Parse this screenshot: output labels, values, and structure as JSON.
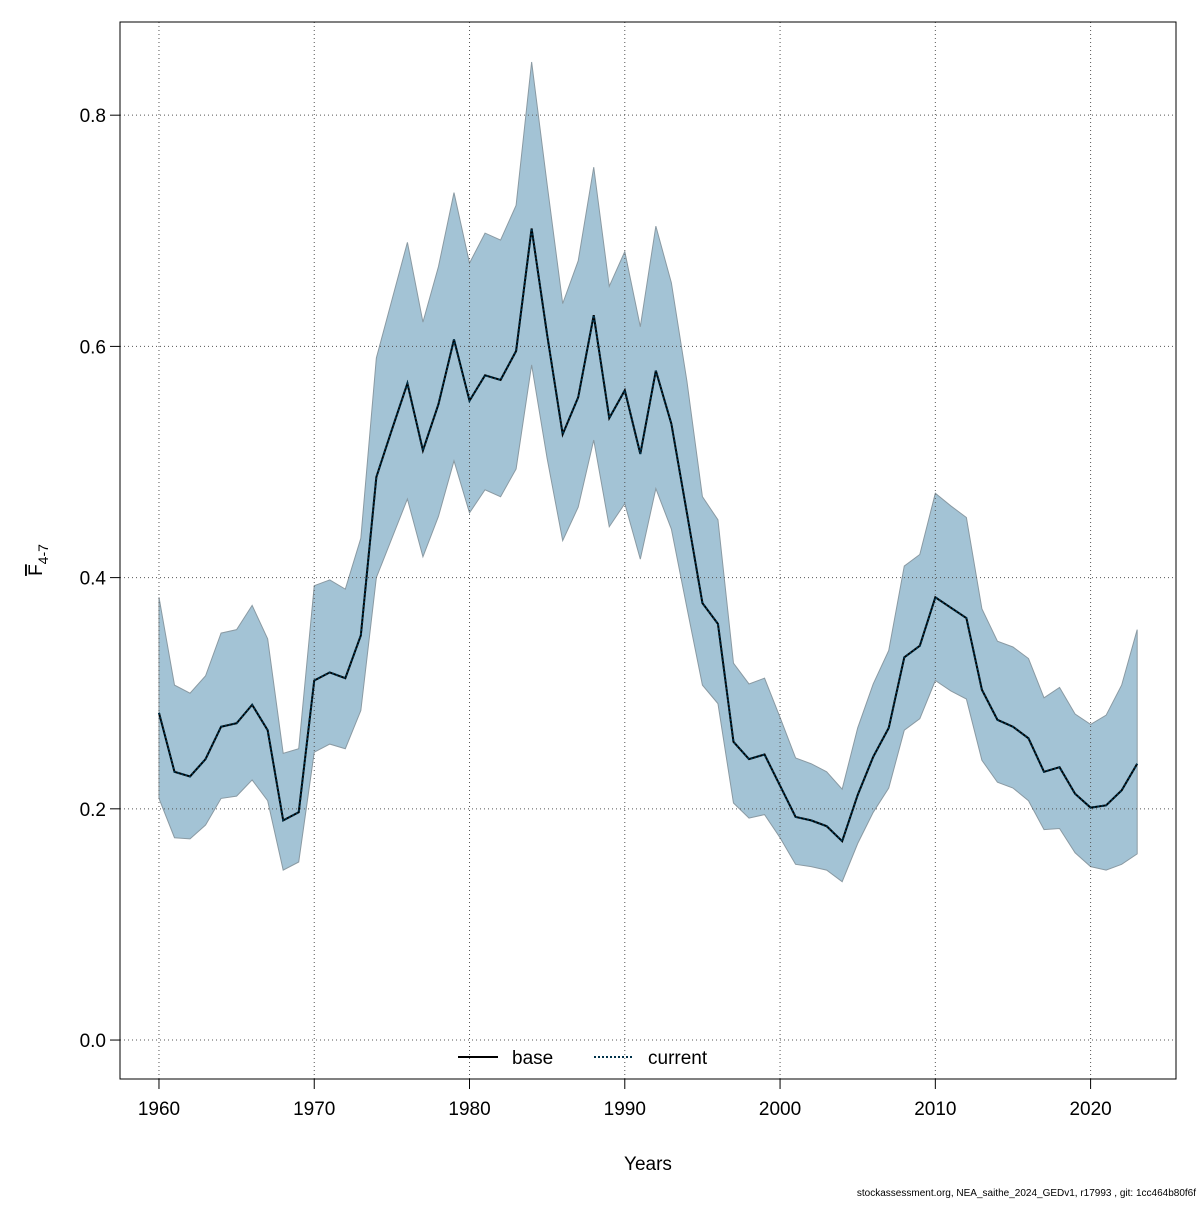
{
  "chart_data": {
    "type": "band-line",
    "xlabel": "Years",
    "ylabel": {
      "main": "F",
      "sub": "4-7"
    },
    "footer": "stockassessment.org, NEA_saithe_2024_GEDv1, r17993 , git: 1cc464b80f6f",
    "x": [
      1960,
      1961,
      1962,
      1963,
      1964,
      1965,
      1966,
      1967,
      1968,
      1969,
      1970,
      1971,
      1972,
      1973,
      1974,
      1975,
      1976,
      1977,
      1978,
      1979,
      1980,
      1981,
      1982,
      1983,
      1984,
      1985,
      1986,
      1987,
      1988,
      1989,
      1990,
      1991,
      1992,
      1993,
      1994,
      1995,
      1996,
      1997,
      1998,
      1999,
      2000,
      2001,
      2002,
      2003,
      2004,
      2005,
      2006,
      2007,
      2008,
      2009,
      2010,
      2011,
      2012,
      2013,
      2014,
      2015,
      2016,
      2017,
      2018,
      2019,
      2020,
      2021,
      2022,
      2023
    ],
    "series": [
      {
        "name": "current",
        "color": "#00324a",
        "band_color": "#a3c3d5",
        "values": [
          0.283,
          0.232,
          0.228,
          0.243,
          0.271,
          0.274,
          0.29,
          0.268,
          0.19,
          0.197,
          0.311,
          0.318,
          0.313,
          0.35,
          0.487,
          0.528,
          0.568,
          0.51,
          0.55,
          0.606,
          0.553,
          0.575,
          0.571,
          0.596,
          0.702,
          0.61,
          0.524,
          0.556,
          0.627,
          0.538,
          0.562,
          0.507,
          0.579,
          0.533,
          0.456,
          0.378,
          0.36,
          0.258,
          0.243,
          0.247,
          0.22,
          0.193,
          0.19,
          0.185,
          0.172,
          0.212,
          0.245,
          0.27,
          0.331,
          0.341,
          0.383,
          0.374,
          0.365,
          0.303,
          0.277,
          0.271,
          0.261,
          0.232,
          0.236,
          0.213,
          0.201,
          0.203,
          0.216,
          0.239
        ],
        "upper": [
          0.383,
          0.307,
          0.3,
          0.315,
          0.352,
          0.355,
          0.376,
          0.347,
          0.248,
          0.252,
          0.393,
          0.398,
          0.39,
          0.434,
          0.59,
          0.64,
          0.69,
          0.621,
          0.669,
          0.733,
          0.672,
          0.698,
          0.692,
          0.722,
          0.846,
          0.74,
          0.637,
          0.674,
          0.755,
          0.652,
          0.682,
          0.617,
          0.704,
          0.655,
          0.57,
          0.47,
          0.45,
          0.326,
          0.308,
          0.313,
          0.279,
          0.244,
          0.239,
          0.232,
          0.217,
          0.27,
          0.308,
          0.337,
          0.41,
          0.42,
          0.473,
          0.462,
          0.452,
          0.373,
          0.345,
          0.34,
          0.33,
          0.296,
          0.305,
          0.282,
          0.273,
          0.281,
          0.307,
          0.355
        ],
        "lower": [
          0.209,
          0.175,
          0.174,
          0.186,
          0.209,
          0.211,
          0.225,
          0.207,
          0.147,
          0.154,
          0.249,
          0.256,
          0.252,
          0.285,
          0.4,
          0.434,
          0.468,
          0.418,
          0.453,
          0.501,
          0.456,
          0.476,
          0.47,
          0.494,
          0.584,
          0.503,
          0.432,
          0.461,
          0.519,
          0.444,
          0.464,
          0.416,
          0.477,
          0.442,
          0.374,
          0.307,
          0.291,
          0.205,
          0.192,
          0.195,
          0.175,
          0.152,
          0.15,
          0.147,
          0.137,
          0.17,
          0.197,
          0.218,
          0.268,
          0.278,
          0.311,
          0.302,
          0.295,
          0.242,
          0.223,
          0.218,
          0.207,
          0.182,
          0.183,
          0.162,
          0.15,
          0.147,
          0.152,
          0.161
        ]
      }
    ],
    "legend": [
      {
        "name": "base",
        "color": "#000000",
        "dash": "solid"
      },
      {
        "name": "current",
        "color": "#00324a",
        "dash": "dotted"
      }
    ],
    "legend_position": "bottom",
    "xlim": [
      1957.49,
      2025.5
    ],
    "ylim": [
      -0.0337,
      0.8806
    ],
    "xticks": [
      1960,
      1970,
      1980,
      1990,
      2000,
      2010,
      2020
    ],
    "yticks": [
      {
        "value": 0,
        "label": "0.0"
      },
      0.2,
      0.4,
      0.6,
      0.8
    ],
    "grid": true
  }
}
